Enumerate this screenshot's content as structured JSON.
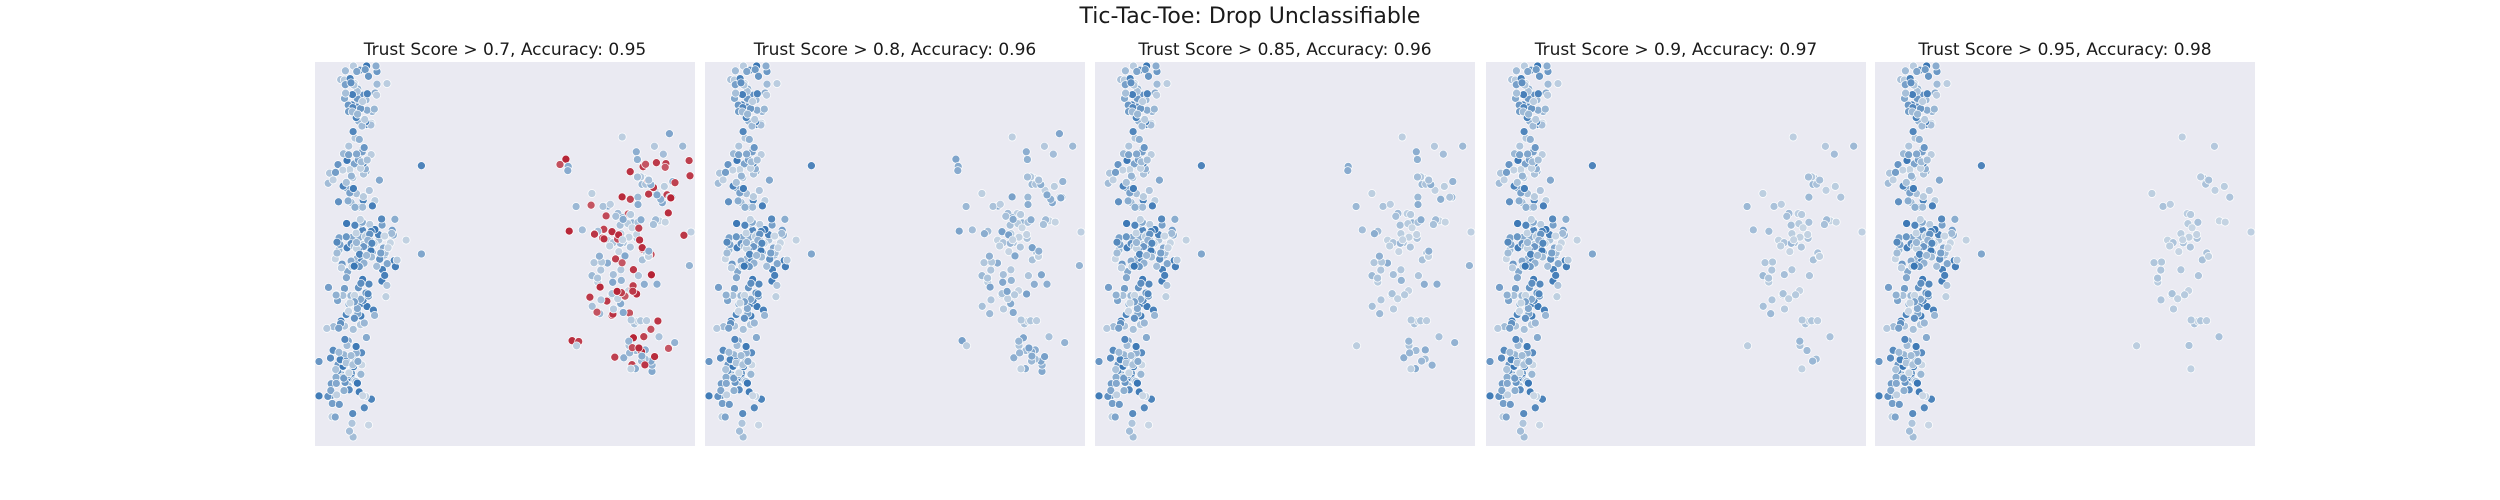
{
  "title": "Tic-Tac-Toe: Drop Unclassifiable",
  "chart_data": {
    "type": "scatter",
    "grid": false,
    "legend": "none",
    "axes_visible": false,
    "colormap": {
      "low": "#2166ac",
      "mid": "#f2f2f2",
      "high": "#b2182b"
    },
    "panels": [
      {
        "title": "Trust Score > 0.7, Accuracy: 0.95",
        "threshold": 0.7,
        "accuracy": 0.95
      },
      {
        "title": "Trust Score > 0.8, Accuracy: 0.96",
        "threshold": 0.8,
        "accuracy": 0.96
      },
      {
        "title": "Trust Score > 0.85, Accuracy: 0.96",
        "threshold": 0.85,
        "accuracy": 0.96
      },
      {
        "title": "Trust Score > 0.9, Accuracy: 0.97",
        "threshold": 0.9,
        "accuracy": 0.97
      },
      {
        "title": "Trust Score > 0.95, Accuracy: 0.98",
        "threshold": 0.95,
        "accuracy": 0.98
      }
    ]
  }
}
